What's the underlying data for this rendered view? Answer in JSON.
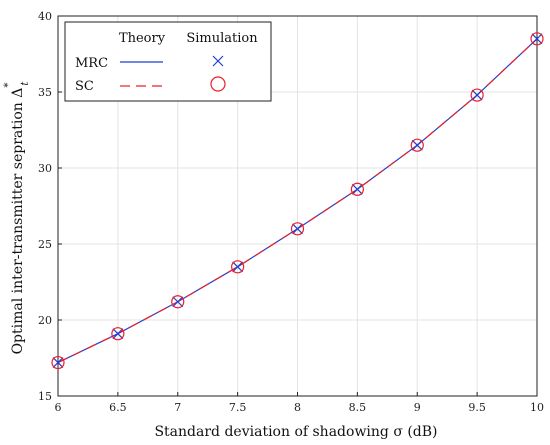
{
  "chart_data": {
    "type": "line",
    "title": "",
    "xlabel": "Standard deviation of shadowing σ (dB)",
    "ylabel": "Optimal inter-transmitter sepration Δ",
    "ylabel_symbol_sup": "*",
    "ylabel_symbol_sub": "t",
    "xlim": [
      6,
      10
    ],
    "ylim": [
      15,
      40
    ],
    "xticks": [
      6,
      6.5,
      7,
      7.5,
      8,
      8.5,
      9,
      9.5,
      10
    ],
    "xtick_labels": [
      "6",
      "6.5",
      "7",
      "7.5",
      "8",
      "8.5",
      "9",
      "9.5",
      "10"
    ],
    "yticks": [
      15,
      20,
      25,
      30,
      35,
      40
    ],
    "ytick_labels": [
      "15",
      "20",
      "25",
      "30",
      "35",
      "40"
    ],
    "grid": true,
    "legend_position": "top-left",
    "legend_headers": [
      "Theory",
      "Simulation"
    ],
    "legend_rows": [
      "MRC",
      "SC"
    ],
    "x": [
      6,
      6.5,
      7,
      7.5,
      8,
      8.5,
      9,
      9.5,
      10
    ],
    "series": [
      {
        "name": "MRC",
        "theory_color": "#1f3fd6",
        "simulation_marker": "x",
        "simulation_color": "#1f3fd6",
        "theory": [
          17.2,
          19.1,
          21.2,
          23.5,
          26.0,
          28.6,
          31.5,
          34.8,
          38.5
        ],
        "simulation": [
          17.2,
          19.1,
          21.2,
          23.5,
          26.0,
          28.6,
          31.5,
          34.8,
          38.5
        ]
      },
      {
        "name": "SC",
        "theory_color": "#e8202a",
        "simulation_marker": "o",
        "simulation_color": "#e8202a",
        "theory": [
          17.2,
          19.1,
          21.2,
          23.5,
          26.0,
          28.6,
          31.5,
          34.8,
          38.5
        ],
        "simulation": [
          17.2,
          19.1,
          21.2,
          23.5,
          26.0,
          28.6,
          31.5,
          34.8,
          38.5
        ]
      }
    ]
  }
}
